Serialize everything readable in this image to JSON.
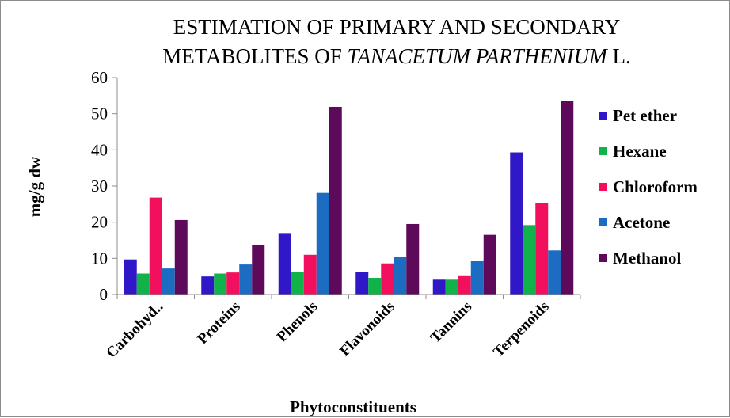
{
  "chart_data": {
    "type": "bar",
    "title_line1": "ESTIMATION OF PRIMARY AND SECONDARY",
    "title_line2_prefix": "METABOLITES OF ",
    "title_line2_italic": "TANACETUM PARTHENIUM",
    "title_line2_suffix": " L.",
    "xlabel": "Phytoconstituents",
    "ylabel": "mg/g dw",
    "ylim": [
      0,
      60
    ],
    "yticks": [
      0,
      10,
      20,
      30,
      40,
      50,
      60
    ],
    "grid": false,
    "legend_position": "right",
    "categories": [
      "Carbohyd..",
      "Proteins",
      "Phenols",
      "Flavonoids",
      "Tannins",
      "Terpenoids"
    ],
    "series": [
      {
        "name": "Pet ether",
        "color": "#3018c8",
        "values": [
          9.7,
          5.0,
          17.0,
          6.3,
          4.1,
          39.3
        ]
      },
      {
        "name": "Hexane",
        "color": "#12b24a",
        "values": [
          5.8,
          5.8,
          6.3,
          4.6,
          4.1,
          19.2
        ]
      },
      {
        "name": "Chloroform",
        "color": "#f2105e",
        "values": [
          26.8,
          6.1,
          11.0,
          8.6,
          5.3,
          25.3
        ]
      },
      {
        "name": "Acetone",
        "color": "#1c6cc2",
        "values": [
          7.2,
          8.3,
          28.1,
          10.5,
          9.2,
          12.2
        ]
      },
      {
        "name": "Methanol",
        "color": "#5e0a5a",
        "values": [
          20.6,
          13.6,
          51.9,
          19.5,
          16.5,
          53.6
        ]
      }
    ]
  }
}
